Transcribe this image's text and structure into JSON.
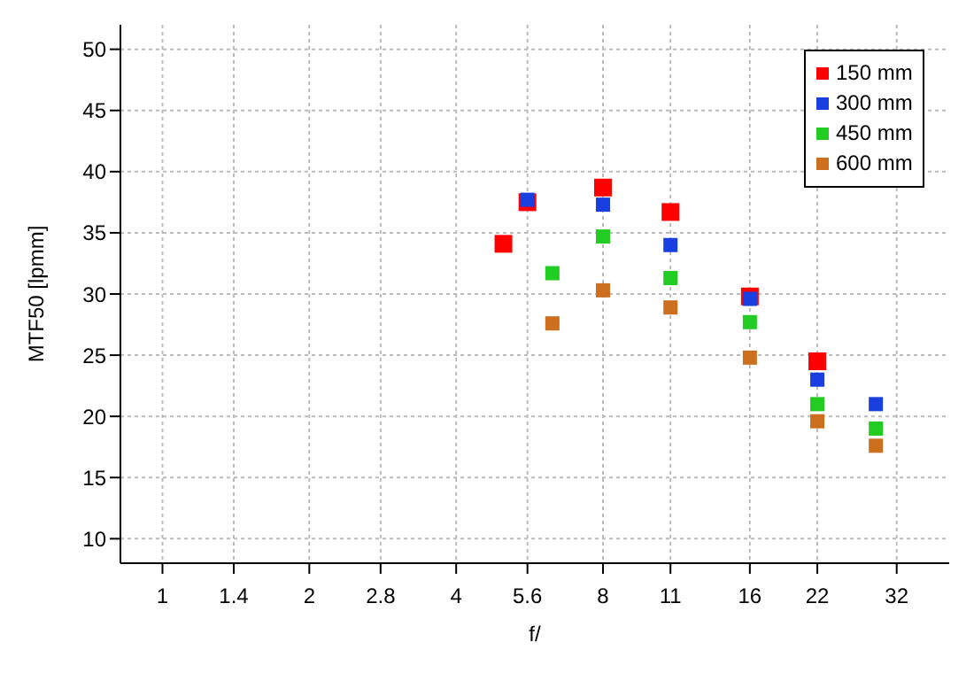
{
  "chart_data": {
    "type": "scatter",
    "xlabel": "f/",
    "ylabel": "MTF50 [lpmm]",
    "log": "x",
    "xlim": [
      0.82,
      41
    ],
    "xticks": [
      1,
      1.4,
      2,
      2.8,
      4,
      5.6,
      8,
      11,
      16,
      22,
      32
    ],
    "ylim": [
      8,
      52
    ],
    "yticks": [
      10,
      15,
      20,
      25,
      30,
      35,
      40,
      45,
      50
    ],
    "grid": true,
    "legend": "top right",
    "marker": "square",
    "series": [
      {
        "name": "150 mm",
        "color": "#ff0000",
        "x": [
          5,
          5.6,
          8,
          11,
          16,
          22
        ],
        "values": [
          34.1,
          37.5,
          38.7,
          36.7,
          29.8,
          24.5
        ]
      },
      {
        "name": "300 mm",
        "color": "#1a3fe0",
        "x": [
          5.6,
          8,
          11,
          16,
          22,
          29
        ],
        "values": [
          37.7,
          37.3,
          34.0,
          29.6,
          23.0,
          21.0
        ]
      },
      {
        "name": "450 mm",
        "color": "#22cc22",
        "x": [
          6.3,
          8,
          11,
          16,
          22,
          29
        ],
        "values": [
          31.7,
          34.7,
          31.3,
          27.7,
          21.0,
          19.0
        ]
      },
      {
        "name": "600 mm",
        "color": "#cc6f1f",
        "x": [
          6.3,
          8,
          11,
          16,
          22,
          29
        ],
        "values": [
          27.6,
          30.3,
          28.9,
          24.8,
          19.6,
          17.6
        ]
      }
    ]
  }
}
